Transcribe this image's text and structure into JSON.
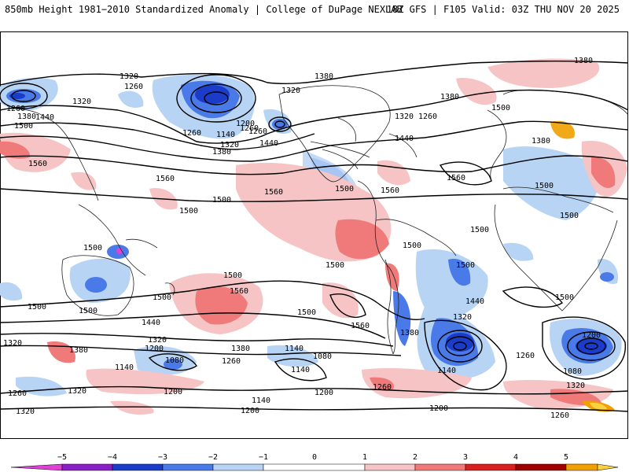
{
  "header": {
    "left": "850mb Height 1981−2010 Standardized Anomaly | College of DuPage NEXLAB",
    "right": "18Z GFS | F105 Valid: 03Z THU NOV 20 2025"
  },
  "colors": {
    "neg5": "#e040d8",
    "neg4": "#8a1fc8",
    "neg3": "#1a3cc8",
    "neg2": "#4a7ae8",
    "neg1": "#b8d4f4",
    "pos1": "#f6c4c4",
    "pos2": "#f07a7a",
    "pos3": "#d82020",
    "pos4": "#a00000",
    "pos5": "#f0a000",
    "pos6": "#f8d040"
  },
  "colorbar": {
    "ticks": [
      "−5",
      "−4",
      "−3",
      "−2",
      "−1",
      "0",
      "1",
      "2",
      "3",
      "4",
      "5"
    ]
  },
  "contour_labels": [
    "1320",
    "1260",
    "1260",
    "1320",
    "1380",
    "1380",
    "1320",
    "1380",
    "1260",
    "1320",
    "1260",
    "1380",
    "1500",
    "1440",
    "1260",
    "1380",
    "1380",
    "1200",
    "1140",
    "1320",
    "1260",
    "1440",
    "1500",
    "1560",
    "1560",
    "1500",
    "1560",
    "1500",
    "1560",
    "1440",
    "1500",
    "1500",
    "1560",
    "1500",
    "1500",
    "1500",
    "1560",
    "1500",
    "1440",
    "1500",
    "1500",
    "1500",
    "1500",
    "1500",
    "1560",
    "1440",
    "1380",
    "1500",
    "1320",
    "1380",
    "1320",
    "1200",
    "1260",
    "1140",
    "1080",
    "1380",
    "1140",
    "1080",
    "1200",
    "1320",
    "1260",
    "1140",
    "1320",
    "1200",
    "1200",
    "1260",
    "1320",
    "1140",
    "1260",
    "1080",
    "1200",
    "1260",
    "1500",
    "1500",
    "1320",
    "1140",
    "1200"
  ]
}
